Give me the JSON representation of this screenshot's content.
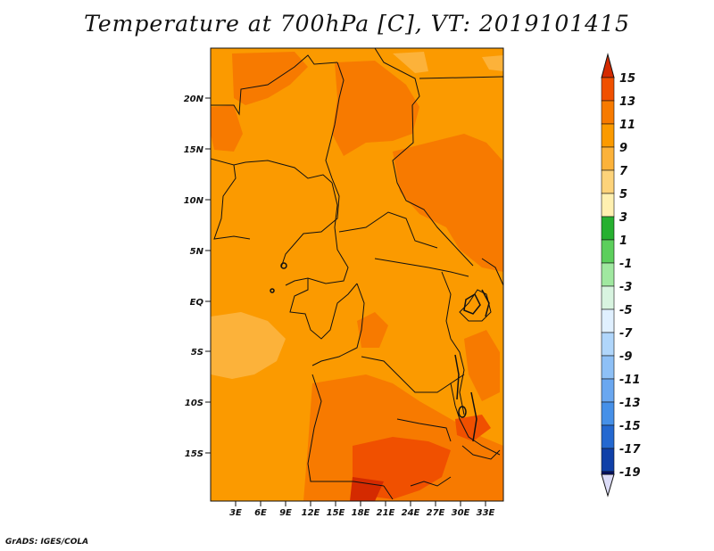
{
  "title": "Temperature at 700hPa [C], VT: 2019101415",
  "credit": "GrADS: IGES/COLA",
  "lat_labels": [
    "20N",
    "15N",
    "10N",
    "5N",
    "EQ",
    "5S",
    "10S",
    "15S"
  ],
  "lon_labels": [
    "3E",
    "6E",
    "9E",
    "12E",
    "15E",
    "18E",
    "21E",
    "24E",
    "27E",
    "30E",
    "33E"
  ],
  "colorbar": {
    "levels": [
      "15",
      "13",
      "11",
      "9",
      "7",
      "5",
      "3",
      "1",
      "-1",
      "-3",
      "-5",
      "-7",
      "-9",
      "-11",
      "-13",
      "-15",
      "-17",
      "-19"
    ],
    "colors": [
      "#d42a00",
      "#f05000",
      "#f77a00",
      "#fb9a00",
      "#fcb23a",
      "#fdd37a",
      "#fff0b0",
      "#26b030",
      "#5ccf5c",
      "#a0e8a0",
      "#d8f4e0",
      "#e0f0ff",
      "#b0d6fb",
      "#8ec0f6",
      "#6aa7f0",
      "#4690e8",
      "#2468d0",
      "#1040a8",
      "#04106a",
      "#dcdcf8"
    ]
  }
}
